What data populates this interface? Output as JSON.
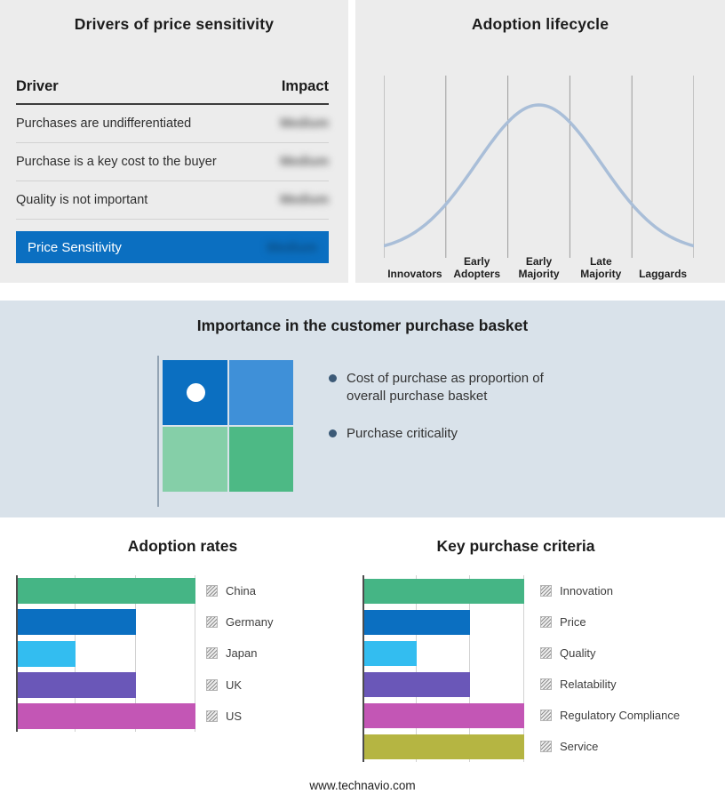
{
  "drivers_panel": {
    "title": "Drivers of price sensitivity",
    "col_driver": "Driver",
    "col_impact": "Impact",
    "rows": [
      {
        "driver": "Purchases are undifferentiated",
        "impact": "Medium"
      },
      {
        "driver": "Purchase is a key cost to the buyer",
        "impact": "Medium"
      },
      {
        "driver": "Quality is not important",
        "impact": "Medium"
      }
    ],
    "summary": {
      "label": "Price Sensitivity",
      "impact": "Medium"
    },
    "impact_values_redacted": true
  },
  "basket_panel": {
    "title": "Importance in the customer purchase basket",
    "bullets": [
      "Cost of purchase as proportion of overall purchase basket",
      "Purchase criticality"
    ]
  },
  "footer": {
    "url": "www.technavio.com"
  },
  "colors": {
    "accent_blue": "#0b6fc1",
    "panel_background": "#ececec",
    "band_background": "#d9e2ea",
    "quadrant": [
      "#0b6fc1",
      "#3f90d8",
      "#85cfa8",
      "#4db985"
    ],
    "bullet_dot": "#3c5a77",
    "curve": "#a9bed8"
  },
  "chart_data": [
    {
      "id": "adoption-lifecycle",
      "type": "line",
      "subtype": "bell-curve",
      "title": "Adoption lifecycle",
      "categories": [
        "Innovators",
        "Early Adopters",
        "Early Majority",
        "Late Majority",
        "Laggards"
      ],
      "relative_heights": [
        0.05,
        0.35,
        1.0,
        0.35,
        0.05
      ],
      "line_color": "#a9bed8",
      "grid": true
    },
    {
      "id": "adoption-rates",
      "type": "bar",
      "title": "Adoption rates",
      "orientation": "horizontal",
      "categories": [
        "China",
        "Germany",
        "Japan",
        "UK",
        "US"
      ],
      "values": [
        3,
        2,
        1,
        2,
        3
      ],
      "xlim": [
        0,
        3
      ],
      "bar_colors": [
        "#45b585",
        "#0b6fc1",
        "#33bdf0",
        "#6a57b8",
        "#c356b5"
      ],
      "grid": true,
      "legend_position": "right",
      "legend_icon": "hatched-square"
    },
    {
      "id": "key-purchase-criteria",
      "type": "bar",
      "title": "Key purchase criteria",
      "orientation": "horizontal",
      "categories": [
        "Innovation",
        "Price",
        "Quality",
        "Relatability",
        "Regulatory Compliance",
        "Service"
      ],
      "values": [
        3,
        2,
        1,
        2,
        3,
        3
      ],
      "xlim": [
        0,
        3
      ],
      "bar_colors": [
        "#45b585",
        "#0b6fc1",
        "#33bdf0",
        "#6a57b8",
        "#c356b5",
        "#b5b542"
      ],
      "grid": true,
      "legend_position": "right",
      "legend_icon": "hatched-square"
    }
  ]
}
